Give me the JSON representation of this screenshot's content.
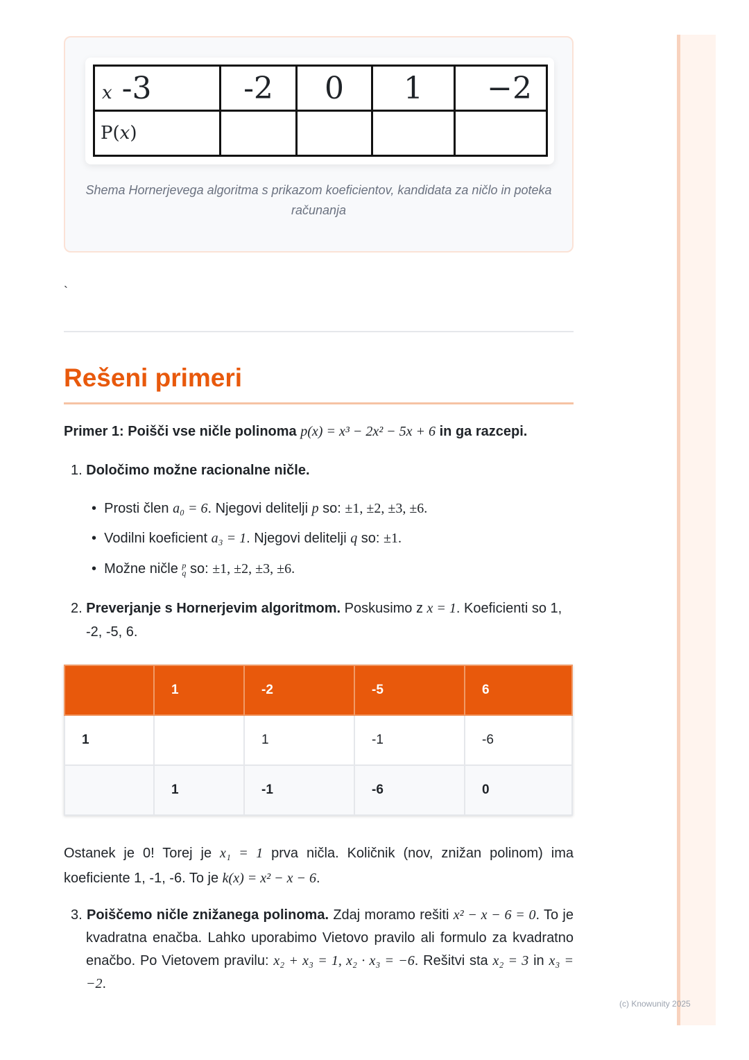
{
  "figure": {
    "table": {
      "row1": [
        "x",
        "-3",
        "-2",
        "0",
        "1",
        "−2"
      ],
      "row2_label": [
        "P(",
        "x",
        ")"
      ]
    },
    "caption": "Shema Hornerjevega algoritma s prikazom koeficientov, kandidata za ničlo in poteka računanja"
  },
  "stray": "`",
  "heading": "Rešeni primeri",
  "primer": {
    "a": "Primer 1: Poišči vse ničle polinoma ",
    "math": "p(x) = x³ − 2x² − 5x + 6",
    "b": " in ga razcepi."
  },
  "step1": {
    "num": "1.",
    "title": "Določimo možne racionalne ničle.",
    "bullets": [
      {
        "a": "Prosti člen ",
        "m1": "a₀ = 6",
        "b": ". Njegovi delitelji ",
        "m2": "p",
        "c": " so: ",
        "m3": "±1, ±2, ±3, ±6."
      },
      {
        "a": "Vodilni koeficient ",
        "m1": "a₃ = 1",
        "b": ". Njegovi delitelji ",
        "m2": "q",
        "c": " so: ",
        "m3": "±1."
      },
      {
        "a": "Možne ničle ",
        "frac_num": "p",
        "frac_den": "q",
        "c": " so: ",
        "m3": "±1, ±2, ±3, ±6."
      }
    ]
  },
  "step2": {
    "num": "2.",
    "title": "Preverjanje s Hornerjevim algoritmom.",
    "a": " Poskusimo z ",
    "m": "x = 1",
    "b": ". Koeficienti so 1, -2, -5, 6."
  },
  "horner": {
    "header": [
      "",
      "1",
      "-2",
      "-5",
      "6"
    ],
    "rows": [
      [
        "1",
        "",
        "1",
        "-1",
        "-6"
      ],
      [
        "",
        "1",
        "-1",
        "-6",
        "0"
      ]
    ]
  },
  "result": {
    "a": "Ostanek je 0! Torej je ",
    "m1": "x₁ = 1",
    "b": " prva ničla. Količnik (nov, znižan polinom) ima koeficiente 1, -1, -6. To je ",
    "m2": "k(x) = x² − x − 6",
    "c": "."
  },
  "step3": {
    "num": "3.",
    "title": "Poiščemo ničle znižanega polinoma.",
    "a": " Zdaj moramo rešiti ",
    "m1": "x² − x − 6 = 0",
    "b": ". To je kvadratna enačba. Lahko uporabimo Vietovo pravilo ali formulo za kvadratno enačbo. Po Vietovem pravilu: ",
    "m2": "x₂ + x₃ = 1, x₂ · x₃ = −6",
    "c": ". Rešitvi sta ",
    "m3": "x₂ = 3",
    "d": " in ",
    "m4": "x₃ = −2",
    "e": "."
  },
  "footer": "(c) Knowunity 2025",
  "colors": {
    "accent": "#e8590c"
  }
}
